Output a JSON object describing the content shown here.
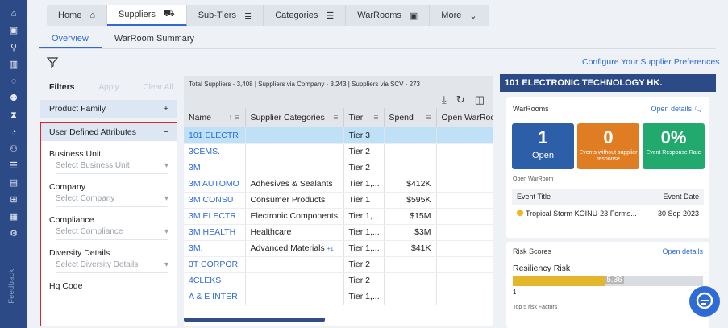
{
  "rail": {
    "icons": [
      "home-icon",
      "calendar-icon",
      "org-icon",
      "buildings-icon",
      "circle-dash-icon",
      "search-people-icon",
      "hourglass-icon",
      "gauge-icon",
      "people-icon",
      "list-icon",
      "clipboard-icon",
      "network-icon",
      "grid-icon",
      "person-gear-icon"
    ],
    "feedback": "Feedback"
  },
  "tabs": [
    {
      "label": "Home",
      "icon": "home-icon"
    },
    {
      "label": "Suppliers",
      "icon": "truck-icon"
    },
    {
      "label": "Sub-Tiers",
      "icon": "layers-icon"
    },
    {
      "label": "Categories",
      "icon": "list-icon"
    },
    {
      "label": "WarRooms",
      "icon": "calendar-icon"
    },
    {
      "label": "More",
      "icon": "chevron-down-icon"
    }
  ],
  "subtabs": [
    "Overview",
    "WarRoom Summary"
  ],
  "configure": "Configure Your Supplier Preferences",
  "filters": {
    "title": "Filters",
    "apply": "Apply",
    "clear": "Clear All",
    "product_family": "Product Family",
    "uda": "User Defined Attributes",
    "fields": [
      {
        "label": "Business Unit",
        "placeholder": "Select Business Unit"
      },
      {
        "label": "Company",
        "placeholder": "Select Company"
      },
      {
        "label": "Compliance",
        "placeholder": "Select Compliance"
      },
      {
        "label": "Diversity Details",
        "placeholder": "Select Diversity Details"
      },
      {
        "label": "Hq Code",
        "placeholder": ""
      }
    ]
  },
  "grid": {
    "stats": "Total Suppliers - 3,408   |   Suppliers via Company - 3,243   |   Suppliers via SCV - 273",
    "columns": [
      "Name",
      "Supplier Categories",
      "Tier",
      "Spend",
      "Open WarRoo"
    ],
    "rows": [
      [
        "101 ELECTR",
        "",
        "Tier 3",
        "",
        ""
      ],
      [
        "3CEMS.",
        "",
        "Tier 2",
        "",
        ""
      ],
      [
        "3M",
        "",
        "Tier 2",
        "",
        ""
      ],
      [
        "3M AUTOMO",
        "Adhesives & Sealants",
        "Tier 1,...",
        "$412K",
        ""
      ],
      [
        "3M CONSU",
        "Consumer Products",
        "Tier 1",
        "$595K",
        ""
      ],
      [
        "3M ELECTR",
        "Electronic Components",
        "Tier 1,...",
        "$15M",
        ""
      ],
      [
        "3M HEALTH",
        "Healthcare",
        "Tier 1,...",
        "$3M",
        ""
      ],
      [
        "3M.",
        "Advanced Materials",
        "Tier 1,...",
        "$41K",
        ""
      ],
      [
        "3T CORPOR",
        "",
        "Tier 2",
        "",
        ""
      ],
      [
        "4CLEKS",
        "",
        "Tier 2",
        "",
        ""
      ],
      [
        "A & E INTER",
        "",
        "Tier 1,...",
        "",
        ""
      ]
    ],
    "plus_tag": "+1"
  },
  "right": {
    "supplier": "101 ELECTRONIC TECHNOLOGY HK.",
    "warrooms": {
      "title": "WarRooms",
      "open_details": "Open details",
      "tiles": [
        {
          "num": "1",
          "label": "Open",
          "color": "#2d5fa8"
        },
        {
          "num": "0",
          "label": "Events without supplier response",
          "color": "#e07d22"
        },
        {
          "num": "0%",
          "label": "Event Response Rate",
          "color": "#22a96e"
        }
      ],
      "open_label": "Open WarRoom",
      "event_title": "Event Title",
      "event_date": "Event Date",
      "event": "Tropical Storm KOINU-23 Forms...",
      "date": "30 Sep 2023"
    },
    "risk": {
      "title": "Risk Scores",
      "open_details": "Open details",
      "resiliency": "Resiliency Risk",
      "score": "5.36",
      "score_value": 5.36,
      "min": "1",
      "factors": "Top 5 risk Factors"
    }
  }
}
